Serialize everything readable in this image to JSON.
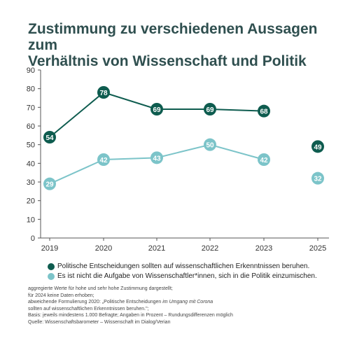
{
  "title_lines": [
    "Zustimmung zu verschiedenen Aussagen zum",
    "Verhältnis von Wissenschaft und Politik"
  ],
  "chart_data": {
    "type": "line",
    "x": [
      "2019",
      "2020",
      "2021",
      "2022",
      "2023",
      "2025"
    ],
    "ylim": [
      0,
      90
    ],
    "yticks": [
      0,
      10,
      20,
      30,
      40,
      50,
      60,
      70,
      80,
      90
    ],
    "grid": false,
    "series": [
      {
        "name": "Politische Entscheidungen sollten auf wissenschaftlichen Erkenntnissen beruhen.",
        "color": "#0e5c4f",
        "label_color": "#ffffff",
        "points": [
          {
            "x": "2019",
            "y": 54
          },
          {
            "x": "2020",
            "y": 78
          },
          {
            "x": "2021",
            "y": 69
          },
          {
            "x": "2022",
            "y": 69
          },
          {
            "x": "2023",
            "y": 68
          },
          {
            "x": "2025",
            "y": 49
          }
        ],
        "line_connects_through": "2023"
      },
      {
        "name": "Es ist nicht die Aufgabe von Wissenschaftler*innen, sich in die Politik einzumischen.",
        "color": "#7cc4c9",
        "label_color": "#ffffff",
        "points": [
          {
            "x": "2019",
            "y": 29
          },
          {
            "x": "2020",
            "y": 42
          },
          {
            "x": "2021",
            "y": 43
          },
          {
            "x": "2022",
            "y": 50
          },
          {
            "x": "2023",
            "y": 42
          },
          {
            "x": "2025",
            "y": 32
          }
        ],
        "line_connects_through": "2023"
      }
    ]
  },
  "footnote": {
    "line1": "aggregierte Werte für hohe und sehr hohe Zustimmung dargestellt;",
    "line2": "für 2024 keine Daten erhoben;",
    "line3_before": "abweichende Formulierung 2020: „Politische Entscheidungen ",
    "line3_italic": "im Umgang mit Corona",
    "line4": "sollten auf wissenschaftlichen Erkenntnissen beruhen.\";",
    "line5": "Basis: jeweils mindestens 1.000 Befragte; Angaben in Prozent – Rundungsdifferenzen möglich",
    "line6": "Quelle: Wissenschaftsbarometer – Wissenschaft im Dialog/Verian"
  }
}
